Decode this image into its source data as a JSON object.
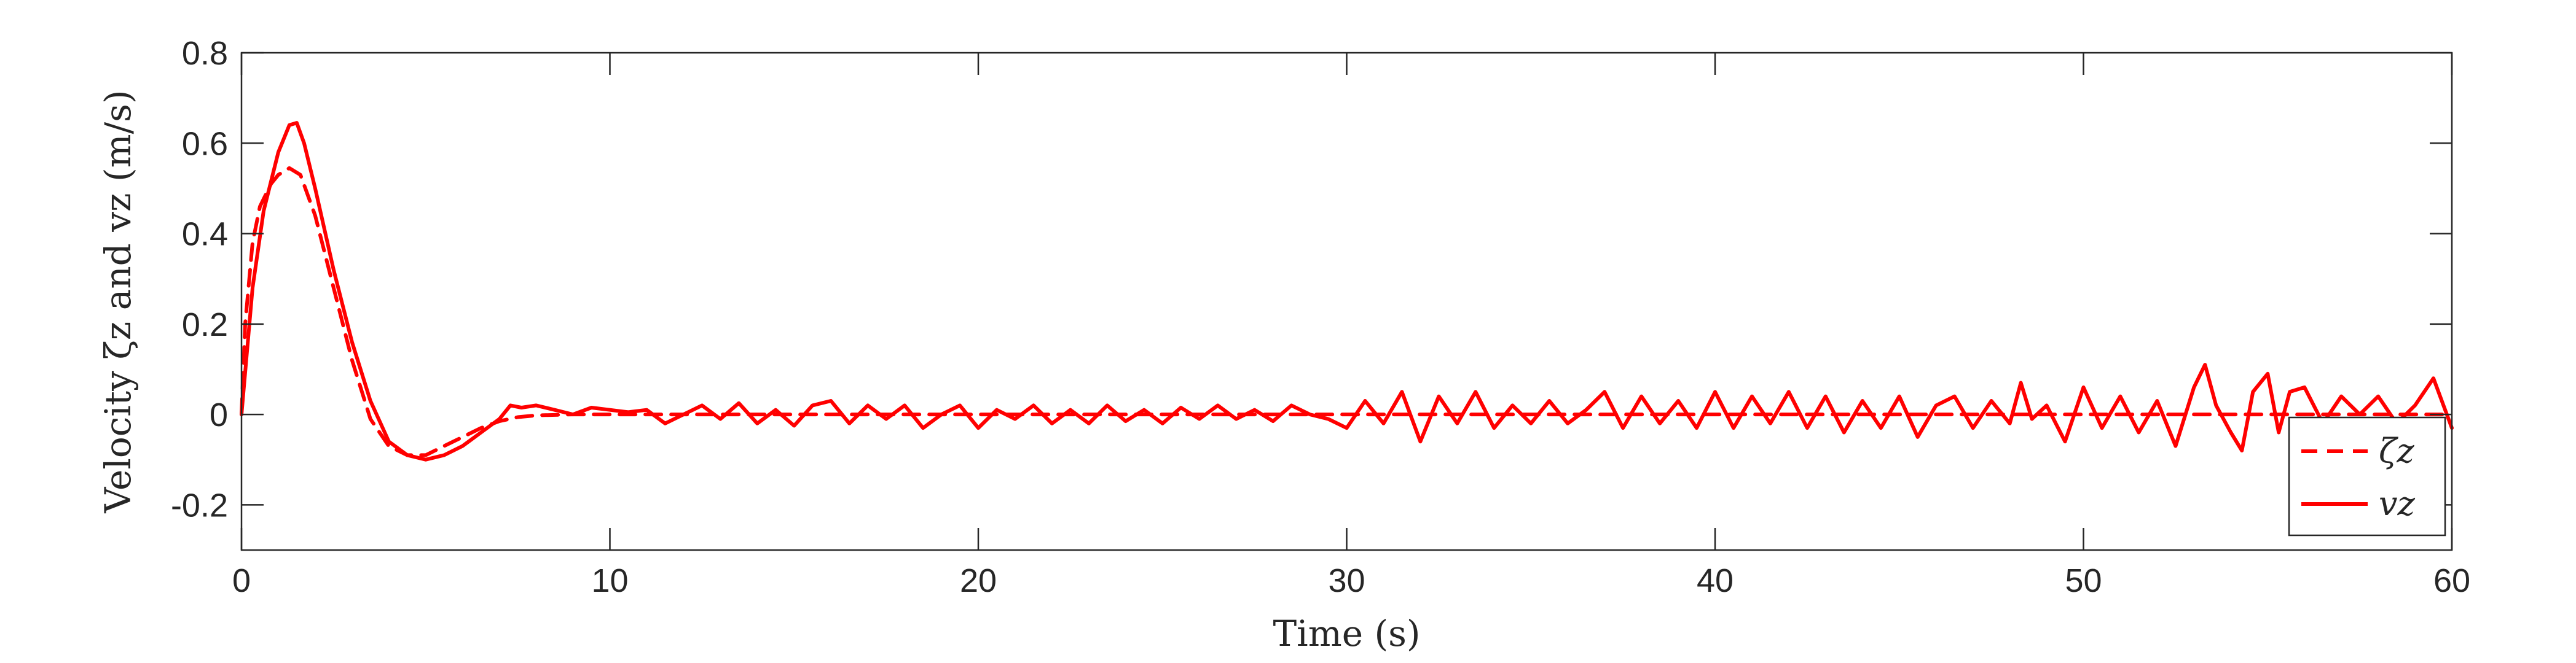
{
  "colors": {
    "series": "#ff0000",
    "axis": "#262626",
    "background": "#ffffff"
  },
  "chart_data": {
    "type": "line",
    "title": "",
    "xlabel": "Time (s)",
    "ylabel": "Velocity ζz and vz (m/s)",
    "xlim": [
      0,
      60
    ],
    "ylim": [
      -0.3,
      0.8
    ],
    "xticks": [
      0,
      10,
      20,
      30,
      40,
      50,
      60
    ],
    "xtick_labels": [
      "0",
      "10",
      "20",
      "30",
      "40",
      "50",
      "60"
    ],
    "yticks": [
      -0.2,
      0,
      0.2,
      0.4,
      0.6,
      0.8
    ],
    "ytick_labels": [
      "-0.2",
      "0",
      "0.2",
      "0.4",
      "0.6",
      "0.8"
    ],
    "grid": false,
    "box": true,
    "legend": {
      "placement": "bottom-right",
      "entries": [
        "ζz",
        "vz"
      ]
    },
    "series": [
      {
        "name": "ζz",
        "style": "dashed",
        "color": "#ff0000",
        "x": [
          0,
          0.1,
          0.3,
          0.5,
          0.8,
          1.0,
          1.3,
          1.6,
          2.0,
          2.5,
          3.0,
          3.5,
          4.0,
          4.5,
          5.0,
          5.5,
          6.0,
          6.5,
          7.0,
          7.5,
          8.0,
          9.0,
          10.0,
          15.0,
          20.0,
          30.0,
          40.0,
          50.0,
          60.0
        ],
        "y": [
          0,
          0.2,
          0.38,
          0.46,
          0.51,
          0.53,
          0.545,
          0.53,
          0.44,
          0.28,
          0.12,
          -0.01,
          -0.07,
          -0.09,
          -0.09,
          -0.07,
          -0.05,
          -0.03,
          -0.015,
          -0.006,
          -0.002,
          0,
          0,
          0,
          0,
          0,
          0,
          0,
          0
        ]
      },
      {
        "name": "vz",
        "style": "solid",
        "color": "#ff0000",
        "x": [
          0,
          0.3,
          0.6,
          1.0,
          1.3,
          1.5,
          1.7,
          2.0,
          2.5,
          3.0,
          3.5,
          4.0,
          4.5,
          5.0,
          5.5,
          6.0,
          6.5,
          7.0,
          7.3,
          7.6,
          8.0,
          8.5,
          9.0,
          9.5,
          10.0,
          10.5,
          11.0,
          11.5,
          12.0,
          12.5,
          13.0,
          13.5,
          14.0,
          14.5,
          15.0,
          15.5,
          16.0,
          16.5,
          17.0,
          17.5,
          18.0,
          18.5,
          19.0,
          19.5,
          20.0,
          20.5,
          21.0,
          21.5,
          22.0,
          22.5,
          23.0,
          23.5,
          24.0,
          24.5,
          25.0,
          25.5,
          26.0,
          26.5,
          27.0,
          27.5,
          28.0,
          28.5,
          29.0,
          29.5,
          30.0,
          30.5,
          31.0,
          31.5,
          32.0,
          32.5,
          33.0,
          33.5,
          34.0,
          34.5,
          35.0,
          35.5,
          36.0,
          36.5,
          37.0,
          37.5,
          38.0,
          38.5,
          39.0,
          39.5,
          40.0,
          40.5,
          41.0,
          41.5,
          42.0,
          42.5,
          43.0,
          43.5,
          44.0,
          44.5,
          45.0,
          45.5,
          46.0,
          46.5,
          47.0,
          47.5,
          48.0,
          48.3,
          48.6,
          49.0,
          49.5,
          50.0,
          50.5,
          51.0,
          51.5,
          52.0,
          52.5,
          53.0,
          53.3,
          53.6,
          54.0,
          54.3,
          54.6,
          55.0,
          55.3,
          55.6,
          56.0,
          56.5,
          57.0,
          57.5,
          58.0,
          58.5,
          59.0,
          59.5,
          60.0
        ],
        "y": [
          0,
          0.28,
          0.45,
          0.58,
          0.64,
          0.645,
          0.6,
          0.5,
          0.32,
          0.16,
          0.03,
          -0.06,
          -0.09,
          -0.1,
          -0.09,
          -0.07,
          -0.04,
          -0.01,
          0.02,
          0.015,
          0.02,
          0.01,
          0.0,
          0.015,
          0.01,
          0.005,
          0.01,
          -0.02,
          0.0,
          0.02,
          -0.01,
          0.025,
          -0.02,
          0.01,
          -0.025,
          0.02,
          0.03,
          -0.02,
          0.02,
          -0.01,
          0.02,
          -0.03,
          0.0,
          0.02,
          -0.03,
          0.01,
          -0.01,
          0.02,
          -0.02,
          0.01,
          -0.02,
          0.02,
          -0.015,
          0.01,
          -0.02,
          0.015,
          -0.01,
          0.02,
          -0.01,
          0.01,
          -0.015,
          0.02,
          0.0,
          -0.01,
          -0.03,
          0.03,
          -0.02,
          0.05,
          -0.06,
          0.04,
          -0.02,
          0.05,
          -0.03,
          0.02,
          -0.02,
          0.03,
          -0.02,
          0.01,
          0.05,
          -0.03,
          0.04,
          -0.02,
          0.03,
          -0.03,
          0.05,
          -0.03,
          0.04,
          -0.02,
          0.05,
          -0.03,
          0.04,
          -0.04,
          0.03,
          -0.03,
          0.04,
          -0.05,
          0.02,
          0.04,
          -0.03,
          0.03,
          -0.02,
          0.07,
          -0.01,
          0.02,
          -0.06,
          0.06,
          -0.03,
          0.04,
          -0.04,
          0.03,
          -0.07,
          0.06,
          0.11,
          0.02,
          -0.04,
          -0.08,
          0.05,
          0.09,
          -0.04,
          0.05,
          0.06,
          -0.02,
          0.04,
          0.0,
          0.04,
          -0.02,
          0.02,
          0.08,
          -0.03
        ]
      }
    ]
  }
}
